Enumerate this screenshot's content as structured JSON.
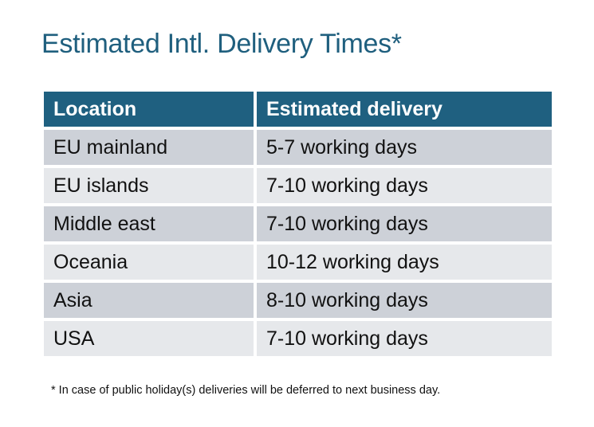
{
  "title": "Estimated Intl. Delivery Times*",
  "colors": {
    "header": "#1f6080",
    "title": "#1f5f7e",
    "row_odd": "#cdd1d8",
    "row_even": "#e6e8eb"
  },
  "table": {
    "headers": [
      "Location",
      "Estimated delivery"
    ],
    "rows": [
      [
        "EU mainland",
        "5-7 working days"
      ],
      [
        "EU islands",
        "7-10 working days"
      ],
      [
        "Middle east",
        "7-10 working days"
      ],
      [
        "Oceania",
        "10-12 working days"
      ],
      [
        "Asia",
        "8-10 working days"
      ],
      [
        "USA",
        "7-10 working days"
      ]
    ]
  },
  "footnote": "* In case of public holiday(s) deliveries will be deferred to next business day."
}
